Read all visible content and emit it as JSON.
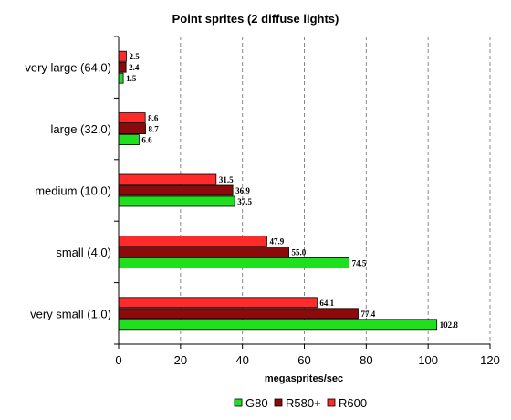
{
  "chart_data": {
    "type": "bar",
    "orientation": "horizontal",
    "title": "Point sprites (2 diffuse lights)",
    "xlabel": "megasprites/sec",
    "ylabel": "",
    "xlim": [
      0,
      120
    ],
    "xticks": [
      0,
      20,
      40,
      60,
      80,
      100,
      120
    ],
    "grid": "vertical dashed",
    "legend_position": "bottom",
    "categories": [
      "very large (64.0)",
      "large (32.0)",
      "medium (10.0)",
      "small (4.0)",
      "very small (1.0)"
    ],
    "series": [
      {
        "name": "G80",
        "color": "#1ee01e",
        "values": [
          1.5,
          6.6,
          37.5,
          74.5,
          102.8
        ]
      },
      {
        "name": "R580+",
        "color": "#8c0a0a",
        "values": [
          2.4,
          8.7,
          36.9,
          55.0,
          77.4
        ]
      },
      {
        "name": "R600",
        "color": "#ff2a2a",
        "values": [
          2.5,
          8.6,
          31.5,
          47.9,
          64.1
        ]
      }
    ],
    "value_labels": [
      [
        "1.5",
        "6.6",
        "37.5",
        "74.5",
        "102.8"
      ],
      [
        "2.4",
        "8.7",
        "36.9",
        "55.0",
        "77.4"
      ],
      [
        "2.5",
        "8.6",
        "31.5",
        "47.9",
        "64.1"
      ]
    ]
  }
}
